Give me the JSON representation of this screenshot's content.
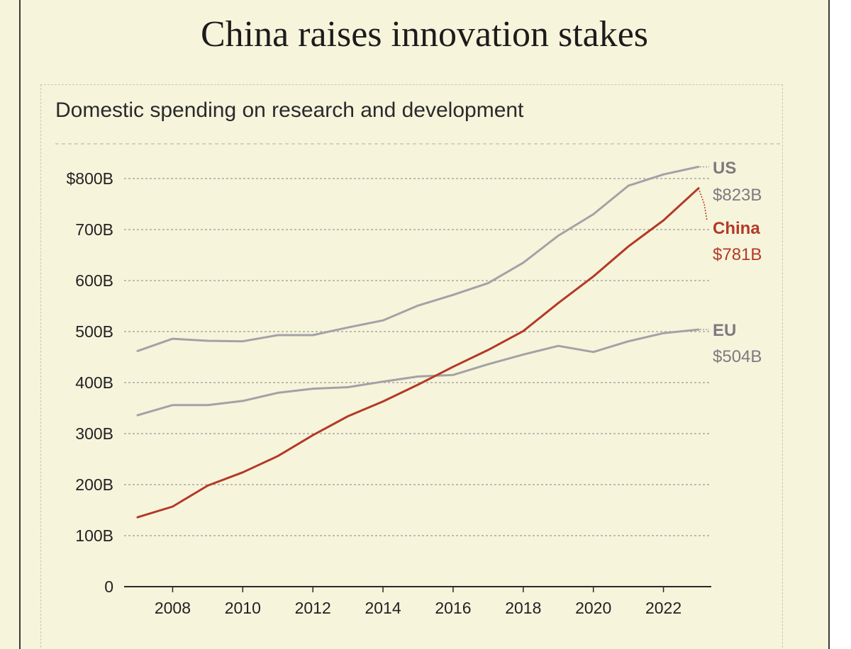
{
  "title": "China raises innovation stakes",
  "chart_data": {
    "type": "line",
    "title": "Domestic spending on research and development",
    "xlabel": "",
    "ylabel": "",
    "x": [
      2007,
      2008,
      2009,
      2010,
      2011,
      2012,
      2013,
      2014,
      2015,
      2016,
      2017,
      2018,
      2019,
      2020,
      2021,
      2022,
      2023
    ],
    "xlim": [
      2007,
      2023
    ],
    "ylim": [
      0,
      800
    ],
    "x_ticks": [
      "2008",
      "2010",
      "2012",
      "2014",
      "2016",
      "2018",
      "2020",
      "2022"
    ],
    "x_tick_values": [
      2008,
      2010,
      2012,
      2014,
      2016,
      2018,
      2020,
      2022
    ],
    "y_ticks": [
      "0",
      "100B",
      "200B",
      "300B",
      "400B",
      "500B",
      "600B",
      "700B",
      "$800B"
    ],
    "y_tick_values": [
      0,
      100,
      200,
      300,
      400,
      500,
      600,
      700,
      800
    ],
    "grid": true,
    "series": [
      {
        "name": "US",
        "label": "US",
        "end_label": "$823B",
        "color": "#a3a2a6",
        "label_color": "#7c7b7f",
        "values": [
          462,
          486,
          482,
          481,
          493,
          493,
          508,
          522,
          551,
          572,
          595,
          635,
          688,
          730,
          786,
          808,
          823
        ]
      },
      {
        "name": "China",
        "label": "China",
        "end_label": "$781B",
        "color": "#b23a26",
        "label_color": "#b23a26",
        "values": [
          136,
          157,
          198,
          224,
          256,
          297,
          334,
          363,
          396,
          431,
          464,
          501,
          556,
          608,
          667,
          718,
          781
        ]
      },
      {
        "name": "EU",
        "label": "EU",
        "end_label": "$504B",
        "color": "#a3a2a6",
        "label_color": "#7c7b7f",
        "values": [
          336,
          356,
          356,
          364,
          380,
          388,
          391,
          402,
          412,
          415,
          436,
          455,
          472,
          460,
          481,
          497,
          504
        ]
      }
    ]
  }
}
